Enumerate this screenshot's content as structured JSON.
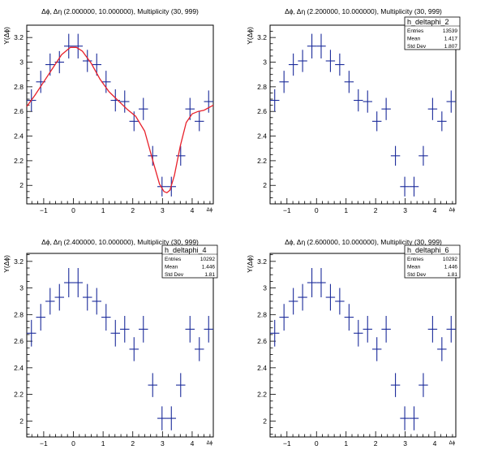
{
  "chart_data": [
    {
      "type": "scatter",
      "title": "Δϕ, Δη (2.000000, 10.000000), Multiplicity (30, 999)",
      "xlabel": "Δϕ",
      "ylabel": "Y(Δϕ)",
      "xlim": [
        -1.571,
        4.712
      ],
      "ylim": [
        1.85,
        3.3
      ],
      "xticks": [
        "−1",
        "0",
        "1",
        "2",
        "3",
        "4"
      ],
      "yticks": [
        "2",
        "2.2",
        "2.4",
        "2.6",
        "2.8",
        "3",
        "3.2"
      ],
      "stats": null,
      "series": [
        {
          "marker_color": "#1a2a9a",
          "x": [
            -1.414,
            -1.1,
            -0.785,
            -0.471,
            -0.157,
            0.157,
            0.471,
            0.785,
            1.1,
            1.414,
            1.728,
            2.042,
            2.356,
            2.67,
            2.985,
            3.299,
            3.613,
            3.927,
            4.241,
            4.555
          ],
          "values": [
            2.69,
            2.84,
            2.98,
            3.0,
            3.13,
            3.13,
            3.01,
            2.98,
            2.84,
            2.69,
            2.68,
            2.52,
            2.62,
            2.24,
            1.99,
            1.99,
            2.24,
            2.62,
            2.52,
            2.68
          ],
          "errors": [
            0.09,
            0.09,
            0.09,
            0.09,
            0.1,
            0.1,
            0.09,
            0.09,
            0.09,
            0.09,
            0.09,
            0.08,
            0.09,
            0.08,
            0.08,
            0.08,
            0.08,
            0.09,
            0.08,
            0.09
          ]
        },
        {
          "curve_color": "#e8202a",
          "x": [
            -1.571,
            -1.3,
            -1.0,
            -0.7,
            -0.4,
            -0.1,
            0.1,
            0.3,
            0.6,
            0.9,
            1.2,
            1.5,
            1.8,
            2.1,
            2.4,
            2.7,
            2.9,
            3.05,
            3.15,
            3.25,
            3.4,
            3.6,
            3.8,
            4.0,
            4.2,
            4.4,
            4.712
          ],
          "values": [
            2.64,
            2.73,
            2.84,
            2.95,
            3.06,
            3.12,
            3.12,
            3.09,
            2.99,
            2.86,
            2.76,
            2.69,
            2.62,
            2.56,
            2.44,
            2.18,
            2.01,
            1.95,
            1.94,
            1.96,
            2.08,
            2.32,
            2.51,
            2.58,
            2.6,
            2.61,
            2.65
          ]
        }
      ]
    },
    {
      "type": "scatter",
      "title": "Δϕ, Δη (2.200000, 10.000000), Multiplicity (30, 999)",
      "xlabel": "Δϕ",
      "ylabel": "Y(Δϕ)",
      "xlim": [
        -1.571,
        4.712
      ],
      "ylim": [
        1.85,
        3.3
      ],
      "xticks": [
        "−1",
        "0",
        "1",
        "2",
        "3",
        "4"
      ],
      "yticks": [
        "2",
        "2.2",
        "2.4",
        "2.6",
        "2.8",
        "3",
        "3.2"
      ],
      "stats": {
        "name": "h_deltaphi_2",
        "rows": [
          [
            "Entries",
            "13539"
          ],
          [
            "Mean",
            "1.417"
          ],
          [
            "Std Dev",
            "1.807"
          ]
        ]
      },
      "series": [
        {
          "marker_color": "#1a2a9a",
          "x": [
            -1.414,
            -1.1,
            -0.785,
            -0.471,
            -0.157,
            0.157,
            0.471,
            0.785,
            1.1,
            1.414,
            1.728,
            2.042,
            2.356,
            2.67,
            2.985,
            3.299,
            3.613,
            3.927,
            4.241,
            4.555
          ],
          "values": [
            2.69,
            2.84,
            2.98,
            3.01,
            3.13,
            3.13,
            3.01,
            2.98,
            2.84,
            2.69,
            2.68,
            2.52,
            2.62,
            2.24,
            1.99,
            1.99,
            2.24,
            2.62,
            2.52,
            2.68
          ],
          "errors": [
            0.09,
            0.09,
            0.09,
            0.09,
            0.1,
            0.1,
            0.09,
            0.09,
            0.09,
            0.09,
            0.09,
            0.08,
            0.09,
            0.08,
            0.08,
            0.08,
            0.08,
            0.09,
            0.08,
            0.09
          ]
        }
      ]
    },
    {
      "type": "scatter",
      "title": "Δϕ, Δη (2.400000, 10.000000), Multiplicity (30, 999)",
      "xlabel": "Δϕ",
      "ylabel": "Y(Δϕ)",
      "xlim": [
        -1.571,
        4.712
      ],
      "ylim": [
        1.88,
        3.26
      ],
      "xticks": [
        "−1",
        "0",
        "1",
        "2",
        "3",
        "4"
      ],
      "yticks": [
        "2",
        "2.2",
        "2.4",
        "2.6",
        "2.8",
        "3",
        "3.2"
      ],
      "stats": {
        "name": "h_deltaphi_4",
        "rows": [
          [
            "Entries",
            "10292"
          ],
          [
            "Mean",
            "1.446"
          ],
          [
            "Std Dev",
            "1.81"
          ]
        ]
      },
      "series": [
        {
          "marker_color": "#1a2a9a",
          "x": [
            -1.414,
            -1.1,
            -0.785,
            -0.471,
            -0.157,
            0.157,
            0.471,
            0.785,
            1.1,
            1.414,
            1.728,
            2.042,
            2.356,
            2.67,
            2.985,
            3.299,
            3.613,
            3.927,
            4.241,
            4.555
          ],
          "values": [
            2.66,
            2.78,
            2.9,
            2.93,
            3.04,
            3.04,
            2.93,
            2.9,
            2.78,
            2.66,
            2.69,
            2.54,
            2.69,
            2.27,
            2.02,
            2.02,
            2.27,
            2.69,
            2.54,
            2.69
          ],
          "errors": [
            0.1,
            0.1,
            0.1,
            0.1,
            0.11,
            0.11,
            0.1,
            0.1,
            0.1,
            0.1,
            0.1,
            0.09,
            0.1,
            0.09,
            0.09,
            0.09,
            0.09,
            0.1,
            0.09,
            0.1
          ]
        }
      ]
    },
    {
      "type": "scatter",
      "title": "Δϕ, Δη (2.600000, 10.000000), Multiplicity (30, 999)",
      "xlabel": "Δϕ",
      "ylabel": "Y(Δϕ)",
      "xlim": [
        -1.571,
        4.712
      ],
      "ylim": [
        1.88,
        3.26
      ],
      "xticks": [
        "−1",
        "0",
        "1",
        "2",
        "3",
        "4"
      ],
      "yticks": [
        "2",
        "2.2",
        "2.4",
        "2.6",
        "2.8",
        "3",
        "3.2"
      ],
      "stats": {
        "name": "h_deltaphi_6",
        "rows": [
          [
            "Entries",
            "10292"
          ],
          [
            "Mean",
            "1.446"
          ],
          [
            "Std Dev",
            "1.81"
          ]
        ]
      },
      "series": [
        {
          "marker_color": "#1a2a9a",
          "x": [
            -1.414,
            -1.1,
            -0.785,
            -0.471,
            -0.157,
            0.157,
            0.471,
            0.785,
            1.1,
            1.414,
            1.728,
            2.042,
            2.356,
            2.67,
            2.985,
            3.299,
            3.613,
            3.927,
            4.241,
            4.555
          ],
          "values": [
            2.66,
            2.78,
            2.9,
            2.93,
            3.04,
            3.04,
            2.93,
            2.9,
            2.78,
            2.66,
            2.69,
            2.54,
            2.69,
            2.27,
            2.02,
            2.02,
            2.27,
            2.69,
            2.54,
            2.69
          ],
          "errors": [
            0.1,
            0.1,
            0.1,
            0.1,
            0.11,
            0.11,
            0.1,
            0.1,
            0.1,
            0.1,
            0.1,
            0.09,
            0.1,
            0.09,
            0.09,
            0.09,
            0.09,
            0.1,
            0.09,
            0.1
          ]
        }
      ]
    }
  ]
}
